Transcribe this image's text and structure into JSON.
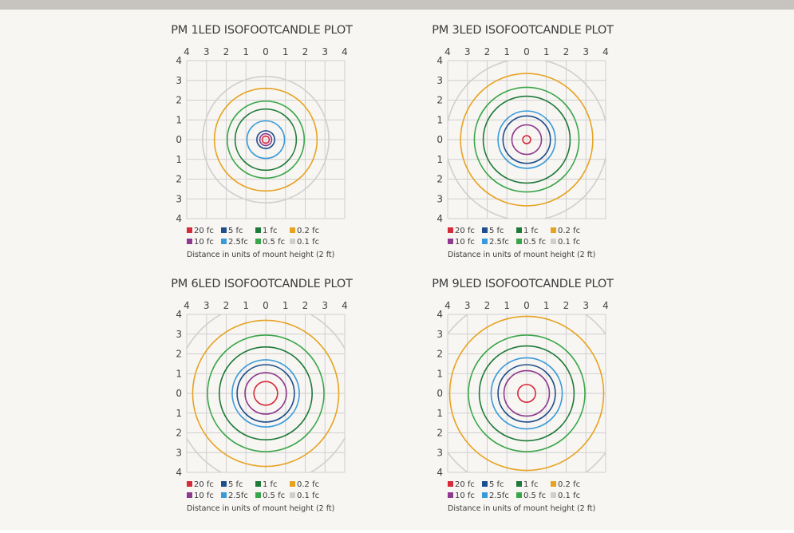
{
  "chart_data": [
    {
      "type": "contour",
      "title": "PM 1LED ISOFOOTCANDLE PLOT",
      "top_ticks": [
        "4",
        "3",
        "2",
        "1",
        "0",
        "1",
        "2",
        "3",
        "4"
      ],
      "left_ticks": [
        "4",
        "3",
        "2",
        "1",
        "0",
        "1",
        "2",
        "3",
        "4"
      ],
      "xlim": [
        -4,
        4
      ],
      "ylim": [
        -4,
        4
      ],
      "grid": true,
      "series": [
        {
          "name": "0.1 fc",
          "radius": 3.2
        },
        {
          "name": "0.2 fc",
          "radius": 2.6
        },
        {
          "name": "0.5 fc",
          "radius": 1.95
        },
        {
          "name": "1 fc",
          "radius": 1.55
        },
        {
          "name": "2.5fc",
          "radius": 0.95
        },
        {
          "name": "5 fc",
          "radius": 0.45
        },
        {
          "name": "10 fc",
          "radius": 0.3
        },
        {
          "name": "20 fc",
          "radius": 0.18
        }
      ],
      "note": "Distance in units of mount height (2 ft)"
    },
    {
      "type": "contour",
      "title": "PM 3LED ISOFOOTCANDLE PLOT",
      "top_ticks": [
        "4",
        "3",
        "2",
        "1",
        "0",
        "1",
        "2",
        "3",
        "4"
      ],
      "left_ticks": [
        "4",
        "3",
        "2",
        "1",
        "0",
        "1",
        "2",
        "3",
        "4"
      ],
      "xlim": [
        -4,
        4
      ],
      "ylim": [
        -4,
        4
      ],
      "grid": true,
      "series": [
        {
          "name": "0.1 fc",
          "radius": 4.1
        },
        {
          "name": "0.2 fc",
          "radius": 3.35
        },
        {
          "name": "0.5 fc",
          "radius": 2.65
        },
        {
          "name": "1 fc",
          "radius": 2.2
        },
        {
          "name": "2.5fc",
          "radius": 1.45
        },
        {
          "name": "5 fc",
          "radius": 1.2
        },
        {
          "name": "10 fc",
          "radius": 0.75
        },
        {
          "name": "20 fc",
          "radius": 0.2
        }
      ],
      "note": "Distance in units of mount height (2 ft)"
    },
    {
      "type": "contour",
      "title": "PM 6LED ISOFOOTCANDLE PLOT",
      "top_ticks": [
        "4",
        "3",
        "2",
        "1",
        "0",
        "1",
        "2",
        "3",
        "4"
      ],
      "left_ticks": [
        "4",
        "3",
        "2",
        "1",
        "0",
        "1",
        "2",
        "3",
        "4"
      ],
      "xlim": [
        -4,
        4
      ],
      "ylim": [
        -4,
        4
      ],
      "grid": true,
      "series": [
        {
          "name": "0.1 fc",
          "radius": 4.6
        },
        {
          "name": "0.2 fc",
          "radius": 3.7
        },
        {
          "name": "0.5 fc",
          "radius": 2.95
        },
        {
          "name": "1 fc",
          "radius": 2.35
        },
        {
          "name": "2.5fc",
          "radius": 1.7
        },
        {
          "name": "5 fc",
          "radius": 1.45
        },
        {
          "name": "10 fc",
          "radius": 1.05
        },
        {
          "name": "20 fc",
          "radius": 0.6
        }
      ],
      "note": "Distance in units of mount height (2 ft)"
    },
    {
      "type": "contour",
      "title": "PM 9LED ISOFOOTCANDLE PLOT",
      "top_ticks": [
        "4",
        "3",
        "2",
        "1",
        "0",
        "1",
        "2",
        "3",
        "4"
      ],
      "left_ticks": [
        "4",
        "3",
        "2",
        "1",
        "0",
        "1",
        "2",
        "3",
        "4"
      ],
      "xlim": [
        -4,
        4
      ],
      "ylim": [
        -4,
        4
      ],
      "grid": true,
      "series": [
        {
          "name": "0.1 fc",
          "radius": 5.0
        },
        {
          "name": "0.2 fc",
          "radius": 3.9
        },
        {
          "name": "0.5 fc",
          "radius": 2.95
        },
        {
          "name": "1 fc",
          "radius": 2.4
        },
        {
          "name": "2.5fc",
          "radius": 1.8
        },
        {
          "name": "5 fc",
          "radius": 1.45
        },
        {
          "name": "10 fc",
          "radius": 1.15
        },
        {
          "name": "20 fc",
          "radius": 0.45
        }
      ],
      "note": "Distance in units of mount height (2 ft)"
    }
  ],
  "legend": [
    {
      "label": "20 fc",
      "color": "#d62b3a"
    },
    {
      "label": "5 fc",
      "color": "#1f4e8c"
    },
    {
      "label": "1 fc",
      "color": "#1f7a3a"
    },
    {
      "label": "0.2 fc",
      "color": "#e6a322"
    },
    {
      "label": "10 fc",
      "color": "#8e3a8e"
    },
    {
      "label": "2.5fc",
      "color": "#3a9ad9"
    },
    {
      "label": "0.5 fc",
      "color": "#3aa64a"
    },
    {
      "label": "0.1 fc",
      "color": "#cfcfcf"
    }
  ]
}
